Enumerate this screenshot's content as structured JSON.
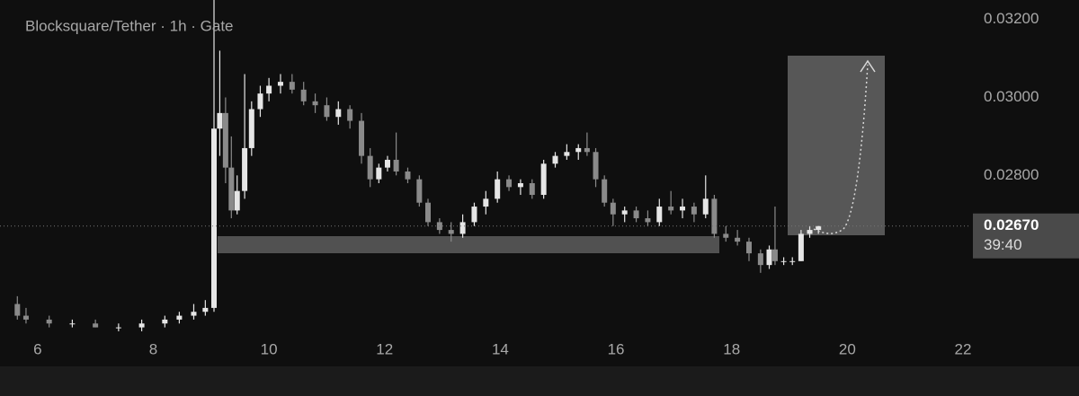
{
  "chart_data": {
    "type": "candlestick",
    "title": "Blocksquare/Tether · 1h · Gate",
    "x": [
      5.65,
      5.8,
      6.2,
      6.6,
      7.0,
      7.4,
      7.8,
      8.2,
      8.45,
      8.7,
      8.9,
      9.05,
      9.15,
      9.25,
      9.35,
      9.45,
      9.58,
      9.7,
      9.85,
      10.0,
      10.2,
      10.4,
      10.6,
      10.8,
      11.0,
      11.2,
      11.4,
      11.6,
      11.75,
      11.9,
      12.05,
      12.2,
      12.4,
      12.6,
      12.75,
      12.95,
      13.15,
      13.35,
      13.55,
      13.75,
      13.95,
      14.15,
      14.35,
      14.55,
      14.75,
      14.95,
      15.15,
      15.35,
      15.5,
      15.65,
      15.8,
      15.95,
      16.15,
      16.35,
      16.55,
      16.75,
      16.95,
      17.15,
      17.35,
      17.55,
      17.7,
      17.9,
      18.1,
      18.3,
      18.5,
      18.65,
      18.75,
      18.9,
      19.05,
      19.2,
      19.35,
      19.5
    ],
    "open": [
      0.0247,
      0.0244,
      0.0243,
      0.0242,
      0.0242,
      0.0241,
      0.0241,
      0.0242,
      0.0243,
      0.0244,
      0.0245,
      0.0246,
      0.0292,
      0.0296,
      0.0282,
      0.0271,
      0.0276,
      0.0287,
      0.0297,
      0.0301,
      0.0303,
      0.0304,
      0.0302,
      0.0299,
      0.0298,
      0.0295,
      0.0297,
      0.0294,
      0.0285,
      0.0279,
      0.0282,
      0.0284,
      0.0281,
      0.0279,
      0.0273,
      0.0268,
      0.0266,
      0.0265,
      0.0268,
      0.0272,
      0.0274,
      0.0279,
      0.0277,
      0.0278,
      0.0275,
      0.0283,
      0.0285,
      0.0286,
      0.0287,
      0.0286,
      0.0279,
      0.0273,
      0.027,
      0.0271,
      0.0269,
      0.0268,
      0.0272,
      0.0271,
      0.0272,
      0.027,
      0.0274,
      0.0265,
      0.0264,
      0.0263,
      0.026,
      0.0257,
      0.0261,
      0.0258,
      0.0258,
      0.0258,
      0.0265,
      0.0266
    ],
    "high": [
      0.0249,
      0.0246,
      0.0244,
      0.0243,
      0.0243,
      0.0242,
      0.0243,
      0.0244,
      0.0245,
      0.0247,
      0.0248,
      0.0325,
      0.0312,
      0.03,
      0.029,
      0.028,
      0.0306,
      0.0299,
      0.0303,
      0.0305,
      0.0306,
      0.0306,
      0.0304,
      0.0301,
      0.03,
      0.0299,
      0.0298,
      0.0296,
      0.0287,
      0.0283,
      0.0285,
      0.0291,
      0.0282,
      0.028,
      0.0274,
      0.0269,
      0.0268,
      0.027,
      0.0273,
      0.0276,
      0.0281,
      0.028,
      0.0279,
      0.0279,
      0.0284,
      0.0286,
      0.0288,
      0.0288,
      0.0291,
      0.0287,
      0.028,
      0.0274,
      0.0272,
      0.0272,
      0.0271,
      0.0274,
      0.0276,
      0.0274,
      0.0273,
      0.028,
      0.0275,
      0.0267,
      0.0266,
      0.0264,
      0.0261,
      0.0262,
      0.0272,
      0.0259,
      0.0259,
      0.0266,
      0.0267,
      0.0267
    ],
    "low": [
      0.0243,
      0.0242,
      0.0241,
      0.0241,
      0.0241,
      0.024,
      0.024,
      0.0241,
      0.0242,
      0.0243,
      0.0244,
      0.0245,
      0.0285,
      0.0278,
      0.0269,
      0.027,
      0.0274,
      0.0285,
      0.0295,
      0.0299,
      0.0301,
      0.0301,
      0.0298,
      0.0296,
      0.0294,
      0.0293,
      0.0292,
      0.0283,
      0.0277,
      0.0278,
      0.0281,
      0.028,
      0.0278,
      0.0272,
      0.0267,
      0.0265,
      0.0263,
      0.0264,
      0.0267,
      0.027,
      0.0273,
      0.0276,
      0.0275,
      0.0274,
      0.0274,
      0.0282,
      0.0284,
      0.0284,
      0.0285,
      0.0277,
      0.0272,
      0.0267,
      0.0268,
      0.0268,
      0.0267,
      0.0267,
      0.027,
      0.0269,
      0.0268,
      0.0269,
      0.0264,
      0.0263,
      0.0262,
      0.0258,
      0.0255,
      0.0256,
      0.0257,
      0.0257,
      0.0257,
      0.0258,
      0.0264,
      0.0265
    ],
    "close": [
      0.0244,
      0.0243,
      0.0242,
      0.0242,
      0.0241,
      0.0241,
      0.0242,
      0.0243,
      0.0244,
      0.0245,
      0.0246,
      0.0292,
      0.0296,
      0.0282,
      0.0271,
      0.0276,
      0.0287,
      0.0297,
      0.0301,
      0.0303,
      0.0304,
      0.0302,
      0.0299,
      0.0298,
      0.0295,
      0.0297,
      0.0294,
      0.0285,
      0.0279,
      0.0282,
      0.0284,
      0.0281,
      0.0279,
      0.0273,
      0.0268,
      0.0266,
      0.0265,
      0.0268,
      0.0272,
      0.0274,
      0.0279,
      0.0277,
      0.0278,
      0.0275,
      0.0283,
      0.0285,
      0.0286,
      0.0287,
      0.0286,
      0.0279,
      0.0273,
      0.027,
      0.0271,
      0.0269,
      0.0268,
      0.0272,
      0.0271,
      0.0272,
      0.027,
      0.0274,
      0.0265,
      0.0264,
      0.0263,
      0.026,
      0.0257,
      0.0261,
      0.0258,
      0.0258,
      0.0258,
      0.0265,
      0.0266,
      0.0267
    ],
    "up_color": "#e6e6e6",
    "down_color": "#8a8a8a",
    "xlim": [
      5.35,
      22.14
    ],
    "xticks": [
      6,
      8,
      10,
      12,
      14,
      16,
      18,
      20,
      22
    ],
    "ylim": [
      0.0231,
      0.0325
    ],
    "yticks": [
      {
        "value": 0.028,
        "label": "0.02800"
      },
      {
        "value": 0.03,
        "label": "0.03000"
      },
      {
        "value": 0.032,
        "label": "0.03200"
      }
    ],
    "last_price": {
      "value": 0.0267,
      "label": "0.02670"
    },
    "countdown": "39:40"
  }
}
